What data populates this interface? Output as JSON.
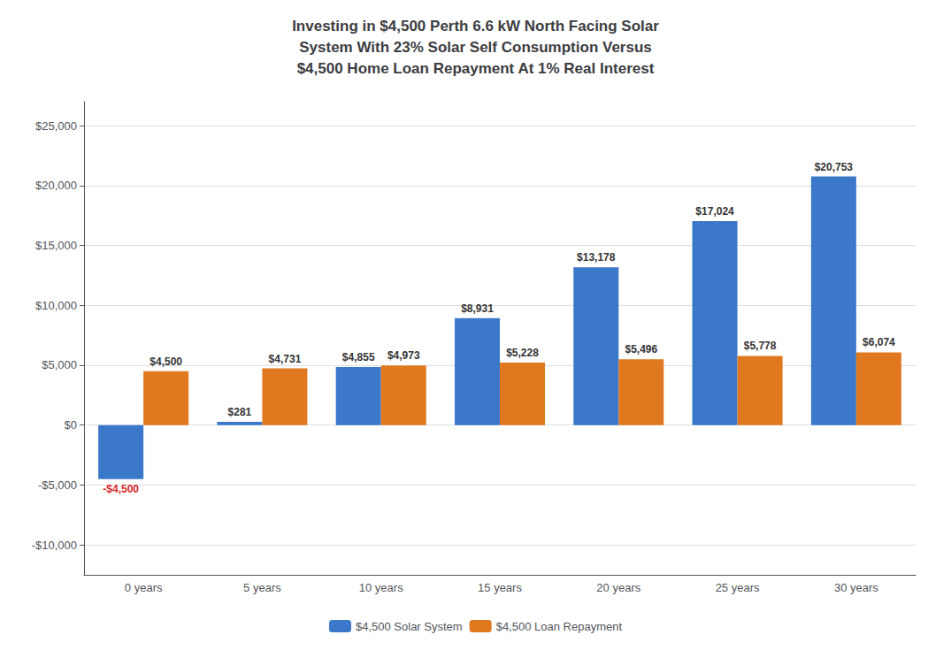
{
  "chart_data": {
    "type": "bar",
    "title": "Investing in $4,500 Perth 6.6 kW North Facing Solar\nSystem With 23% Solar Self Consumption Versus\n$4,500 Home Loan Repayment At 1% Real Interest",
    "categories": [
      "0 years",
      "5 years",
      "10 years",
      "15 years",
      "20 years",
      "25 years",
      "30 years"
    ],
    "series": [
      {
        "name": "$4,500 Solar System",
        "color": "#3b78c9",
        "values": [
          -4500,
          281,
          4855,
          8931,
          13178,
          17024,
          20753
        ],
        "value_labels": [
          "-$4,500",
          "$281",
          "$4,855",
          "$8,931",
          "$13,178",
          "$17,024",
          "$20,753"
        ]
      },
      {
        "name": "$4,500 Loan Repayment",
        "color": "#e07820",
        "values": [
          4500,
          4731,
          4973,
          5228,
          5496,
          5778,
          6074
        ],
        "value_labels": [
          "$4,500",
          "$4,731",
          "$4,973",
          "$5,228",
          "$5,496",
          "$5,778",
          "$6,074"
        ]
      }
    ],
    "ylim": [
      -12500,
      27000
    ],
    "yticks": [
      {
        "value": -10000,
        "label": "-$10,000"
      },
      {
        "value": -5000,
        "label": "-$5,000"
      },
      {
        "value": 0,
        "label": "$0"
      },
      {
        "value": 5000,
        "label": "$5,000"
      },
      {
        "value": 10000,
        "label": "$10,000"
      },
      {
        "value": 15000,
        "label": "$15,000"
      },
      {
        "value": 20000,
        "label": "$20,000"
      },
      {
        "value": 25000,
        "label": "$25,000"
      }
    ],
    "grid": true,
    "legend": "bottom",
    "data_labels": true
  }
}
